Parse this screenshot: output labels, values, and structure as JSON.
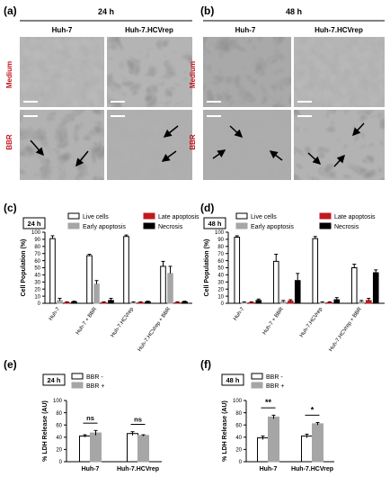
{
  "panels": {
    "a": "(a)",
    "b": "(b)",
    "c": "(c)",
    "d": "(d)",
    "e": "(e)",
    "f": "(f)"
  },
  "micro": {
    "a": {
      "time": "24 h",
      "col1": "Huh-7",
      "col2": "Huh-7.HCVrep"
    },
    "b": {
      "time": "48 h",
      "col1": "Huh-7",
      "col2": "Huh-7.HCVrep"
    },
    "row1": "Medium",
    "row2": "BBR"
  },
  "colors": {
    "live": "#ffffff",
    "early": "#a6a6a6",
    "late": "#c0191f",
    "necrosis": "#000000",
    "bbr_minus": "#ffffff",
    "bbr_plus": "#a6a6a6",
    "row_label": "#c0191f"
  },
  "chart_data": [
    {
      "id": "c",
      "type": "bar",
      "badge": "24 h",
      "ylabel": "Cell Population (%)",
      "ylim": [
        0,
        100
      ],
      "yticks": [
        "0",
        "10",
        "20",
        "30",
        "40",
        "50",
        "60",
        "70",
        "80",
        "90",
        "100"
      ],
      "categories": [
        "Huh-7",
        "Huh-7 + BBR",
        "Huh-7.HCVrep",
        "Huh-7.HCVrep + BBR"
      ],
      "series": [
        {
          "name": "Live cells",
          "values": [
            91,
            67,
            94,
            52
          ],
          "errors": [
            4,
            2,
            2,
            7
          ]
        },
        {
          "name": "Early apoptosis",
          "values": [
            4,
            27,
            1,
            42
          ],
          "errors": [
            3,
            5,
            1,
            10
          ]
        },
        {
          "name": "Late apoptosis",
          "values": [
            1,
            1,
            1,
            1
          ],
          "errors": [
            1,
            1,
            1,
            1
          ]
        },
        {
          "name": "Necrosis",
          "values": [
            2,
            4,
            2,
            2
          ],
          "errors": [
            1,
            3,
            1,
            1
          ]
        }
      ]
    },
    {
      "id": "d",
      "type": "bar",
      "badge": "48 h",
      "ylabel": "Cell Population (%)",
      "ylim": [
        0,
        100
      ],
      "yticks": [
        "0",
        "10",
        "20",
        "30",
        "40",
        "50",
        "60",
        "70",
        "80",
        "90",
        "100"
      ],
      "categories": [
        "Huh-7",
        "Huh-7 + BBR",
        "Huh-7.HCVrep",
        "Huh-7.HCVrep + BBR"
      ],
      "series": [
        {
          "name": "Live cells",
          "values": [
            93,
            59,
            91,
            50
          ],
          "errors": [
            2,
            10,
            3,
            5
          ]
        },
        {
          "name": "Early apoptosis",
          "values": [
            1,
            2,
            1,
            2
          ],
          "errors": [
            1,
            2,
            1,
            2
          ]
        },
        {
          "name": "Late apoptosis",
          "values": [
            1,
            3,
            1,
            4
          ],
          "errors": [
            1,
            2,
            1,
            3
          ]
        },
        {
          "name": "Necrosis",
          "values": [
            4,
            32,
            5,
            43
          ],
          "errors": [
            2,
            10,
            3,
            4
          ]
        }
      ]
    },
    {
      "id": "e",
      "type": "bar",
      "badge": "24 h",
      "ylabel": "% LDH Release (AU)",
      "ylim": [
        0,
        100
      ],
      "yticks": [
        "0",
        "20",
        "40",
        "60",
        "80",
        "100"
      ],
      "categories": [
        "Huh-7",
        "Huh-7.HCVrep"
      ],
      "series": [
        {
          "name": "BBR -",
          "values": [
            42,
            46
          ],
          "errors": [
            2,
            3
          ]
        },
        {
          "name": "BBR +",
          "values": [
            47,
            43
          ],
          "errors": [
            4,
            1
          ]
        }
      ],
      "annotations": [
        "ns",
        "ns"
      ]
    },
    {
      "id": "f",
      "type": "bar",
      "badge": "48 h",
      "ylabel": "% LDH Release (AU)",
      "ylim": [
        0,
        100
      ],
      "yticks": [
        "0",
        "20",
        "40",
        "60",
        "80",
        "100"
      ],
      "categories": [
        "Huh-7",
        "Huh-7.HCVrep"
      ],
      "series": [
        {
          "name": "BBR -",
          "values": [
            39,
            42
          ],
          "errors": [
            3,
            3
          ]
        },
        {
          "name": "BBR +",
          "values": [
            73,
            62
          ],
          "errors": [
            3,
            2
          ]
        }
      ],
      "annotations": [
        "**",
        "*"
      ]
    }
  ]
}
